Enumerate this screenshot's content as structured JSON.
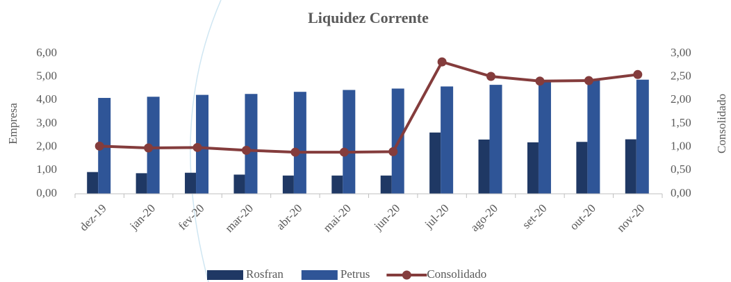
{
  "chart_data": {
    "type": "bar_line",
    "title": "Liquidez Corrente",
    "y_label": "Empresa",
    "y2_label": "Consolidado",
    "categories": [
      "dez-19",
      "jan-20",
      "fev-20",
      "mar-20",
      "abr-20",
      "mai-20",
      "jun-20",
      "jul-20",
      "ago-20",
      "set-20",
      "out-20",
      "nov-20"
    ],
    "series": [
      {
        "name": "Rosfran",
        "color": "#1f3864",
        "kind": "bar",
        "values": [
          0.93,
          0.88,
          0.9,
          0.82,
          0.78,
          0.78,
          0.78,
          2.62,
          2.32,
          2.2,
          2.22,
          2.33
        ]
      },
      {
        "name": "Petrus",
        "color": "#2f5597",
        "kind": "bar",
        "values": [
          4.1,
          4.15,
          4.23,
          4.27,
          4.36,
          4.44,
          4.5,
          4.59,
          4.66,
          4.8,
          4.85,
          4.88
        ]
      },
      {
        "name": "Consolidado",
        "color": "#843c3c",
        "kind": "line",
        "axis": "y2",
        "values": [
          1.02,
          0.98,
          0.99,
          0.93,
          0.89,
          0.89,
          0.9,
          2.82,
          2.51,
          2.41,
          2.42,
          2.55
        ]
      }
    ],
    "ylim": [
      0,
      6
    ],
    "yticks": [
      {
        "value": 0,
        "label": "0,00"
      },
      {
        "value": 1,
        "label": "1,00"
      },
      {
        "value": 2,
        "label": "2,00"
      },
      {
        "value": 3,
        "label": "3,00"
      },
      {
        "value": 4,
        "label": "4,00"
      },
      {
        "value": 5,
        "label": "5,00"
      },
      {
        "value": 6,
        "label": "6,00"
      }
    ],
    "y2lim": [
      0,
      3
    ],
    "y2ticks": [
      {
        "value": 0,
        "label": "0,00"
      },
      {
        "value": 0.5,
        "label": "0,50"
      },
      {
        "value": 1,
        "label": "1,00"
      },
      {
        "value": 1.5,
        "label": "1,50"
      },
      {
        "value": 2,
        "label": "2,00"
      },
      {
        "value": 2.5,
        "label": "2,50"
      },
      {
        "value": 3,
        "label": "3,00"
      }
    ],
    "legend": "bottom"
  }
}
